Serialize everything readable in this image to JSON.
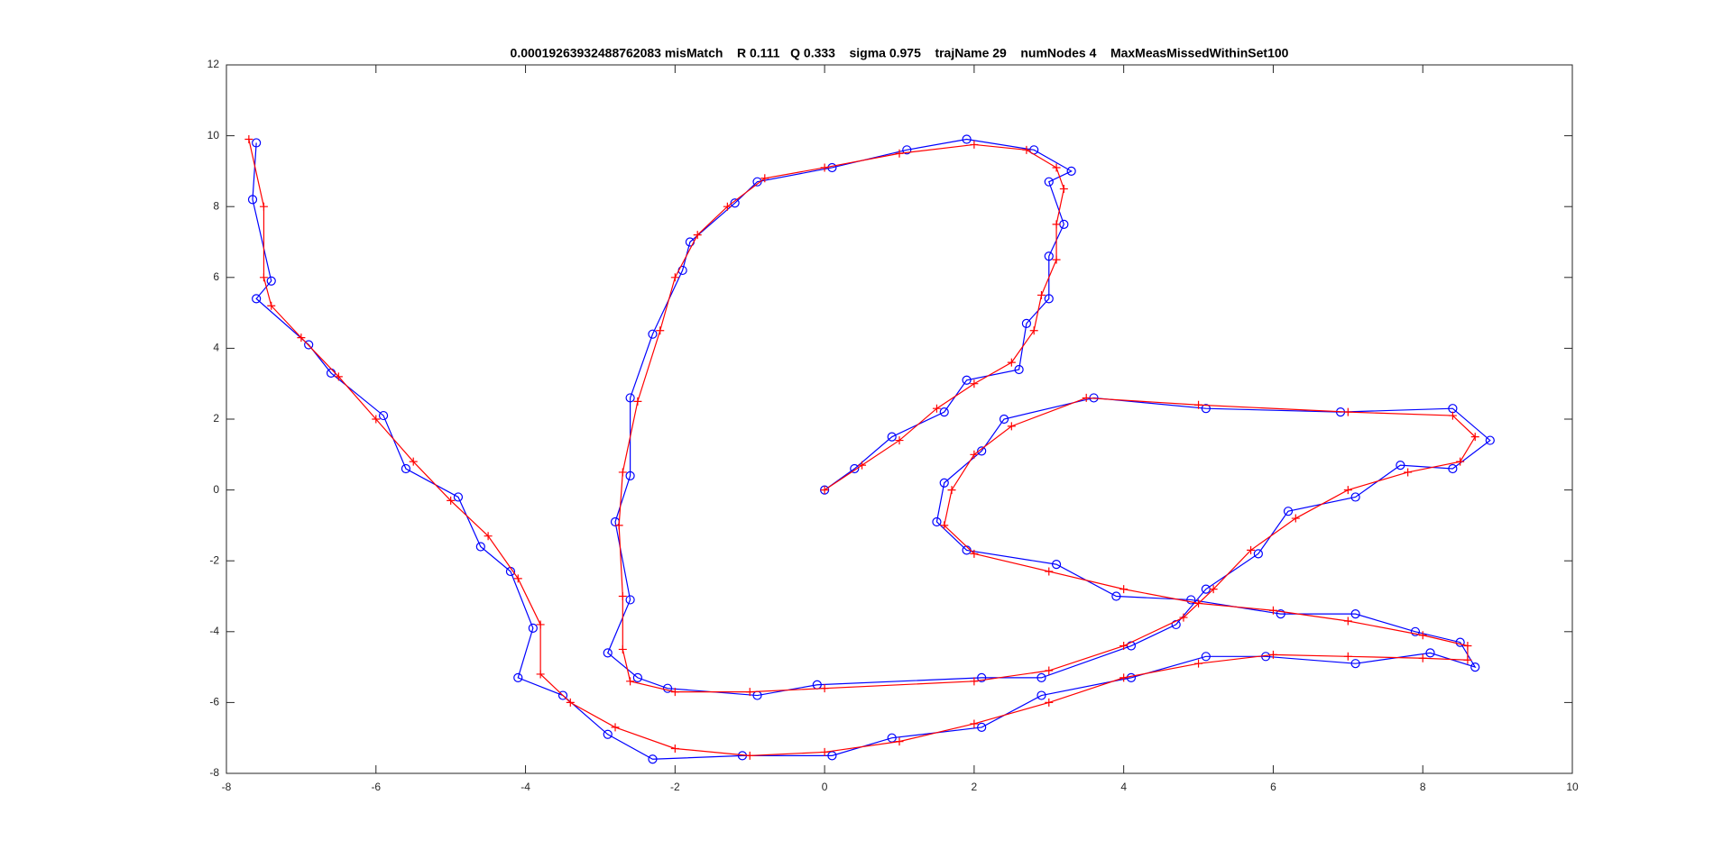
{
  "chart_data": {
    "type": "line",
    "title": "0.00019263932488762083 misMatch    R 0.111   Q 0.333    sigma 0.975    trajName 29    numNodes 4    MaxMeasMissedWithinSet100",
    "xlim": [
      -8,
      10
    ],
    "ylim": [
      -8,
      12
    ],
    "xticks": [
      -8,
      -6,
      -4,
      -2,
      0,
      2,
      4,
      6,
      8,
      10
    ],
    "yticks": [
      -8,
      -6,
      -4,
      -2,
      0,
      2,
      4,
      6,
      8,
      10,
      12
    ],
    "grid": false,
    "series": [
      {
        "color": "#0000ff",
        "marker": "o",
        "x": [
          -7.6,
          -7.65,
          -7.4,
          -7.6,
          -6.9,
          -6.6,
          -5.9,
          -5.6,
          -4.9,
          -4.6,
          -4.2,
          -3.9,
          -4.1,
          -3.5,
          -2.9,
          -2.3,
          -1.1,
          0.1,
          0.9,
          2.1,
          2.9,
          4.1,
          5.1,
          5.9,
          7.1,
          8.1,
          8.7,
          8.5,
          7.9,
          7.1,
          6.1,
          4.9,
          3.9,
          3.1,
          1.9,
          1.5,
          1.6,
          2.1,
          2.4,
          3.6,
          5.1,
          6.9,
          8.4,
          8.9,
          8.4,
          7.7,
          7.1,
          6.2,
          5.8,
          5.1,
          4.7,
          4.1,
          2.9,
          2.1,
          -0.1,
          -0.9,
          -2.1,
          -2.5,
          -2.9,
          -2.6,
          -2.8,
          -2.6,
          -2.6,
          -2.3,
          -1.9,
          -1.8,
          -1.2,
          -0.9,
          0.1,
          1.1,
          1.9,
          2.8,
          3.3,
          3.0,
          3.2,
          3.0,
          3.0,
          2.7,
          2.6,
          1.9,
          1.6,
          0.9,
          0.4,
          0
        ],
        "values": [
          9.8,
          8.2,
          5.9,
          5.4,
          4.1,
          3.3,
          2.1,
          0.6,
          -0.2,
          -1.6,
          -2.3,
          -3.9,
          -5.3,
          -5.8,
          -6.9,
          -7.6,
          -7.5,
          -7.5,
          -7.0,
          -6.7,
          -5.8,
          -5.3,
          -4.7,
          -4.7,
          -4.9,
          -4.6,
          -5.0,
          -4.3,
          -4.0,
          -3.5,
          -3.5,
          -3.1,
          -3.0,
          -2.1,
          -1.7,
          -0.9,
          0.2,
          1.1,
          2.0,
          2.6,
          2.3,
          2.2,
          2.3,
          1.4,
          0.6,
          0.7,
          -0.2,
          -0.6,
          -1.8,
          -2.8,
          -3.8,
          -4.4,
          -5.3,
          -5.3,
          -5.5,
          -5.8,
          -5.6,
          -5.3,
          -4.6,
          -3.1,
          -0.9,
          0.4,
          2.6,
          4.4,
          6.2,
          7.0,
          8.1,
          8.7,
          9.1,
          9.6,
          9.9,
          9.6,
          9.0,
          8.7,
          7.5,
          6.6,
          5.4,
          4.7,
          3.4,
          3.1,
          2.2,
          1.5,
          0.6,
          0
        ]
      },
      {
        "color": "#ff0000",
        "marker": "+",
        "x": [
          -7.7,
          -7.5,
          -7.5,
          -7.4,
          -7,
          -6.5,
          -6,
          -5.5,
          -5,
          -4.5,
          -4.1,
          -3.8,
          -3.8,
          -3.4,
          -2.8,
          -2,
          -1,
          0,
          1,
          2,
          3,
          4,
          5,
          6,
          7,
          8,
          8.6,
          8.6,
          8,
          7,
          6,
          5,
          4,
          3,
          2,
          1.6,
          1.7,
          2,
          2.5,
          3.5,
          5,
          7,
          8.4,
          8.7,
          8.5,
          7.8,
          7,
          6.3,
          5.7,
          5.2,
          4.8,
          4,
          3,
          2,
          0,
          -1,
          -2,
          -2.6,
          -2.7,
          -2.7,
          -2.75,
          -2.7,
          -2.5,
          -2.2,
          -2,
          -1.7,
          -1.3,
          -0.8,
          0,
          1,
          2,
          2.7,
          3.1,
          3.2,
          3.1,
          3.1,
          2.9,
          2.8,
          2.5,
          2,
          1.5,
          1,
          0.5,
          0
        ],
        "values": [
          9.9,
          8,
          6,
          5.2,
          4.3,
          3.2,
          2,
          0.8,
          -0.3,
          -1.3,
          -2.5,
          -3.8,
          -5.2,
          -6,
          -6.7,
          -7.3,
          -7.5,
          -7.4,
          -7.1,
          -6.6,
          -6,
          -5.3,
          -4.9,
          -4.65,
          -4.7,
          -4.75,
          -4.8,
          -4.4,
          -4.1,
          -3.7,
          -3.4,
          -3.2,
          -2.8,
          -2.3,
          -1.8,
          -1,
          0,
          1,
          1.8,
          2.6,
          2.4,
          2.2,
          2.1,
          1.5,
          0.8,
          0.5,
          0,
          -0.8,
          -1.7,
          -2.8,
          -3.6,
          -4.4,
          -5.1,
          -5.4,
          -5.6,
          -5.7,
          -5.7,
          -5.4,
          -4.5,
          -3,
          -1,
          0.5,
          2.5,
          4.5,
          6,
          7.2,
          8,
          8.8,
          9.1,
          9.5,
          9.75,
          9.6,
          9.1,
          8.5,
          7.5,
          6.5,
          5.5,
          4.5,
          3.6,
          3,
          2.3,
          1.4,
          0.7,
          0
        ]
      }
    ]
  }
}
